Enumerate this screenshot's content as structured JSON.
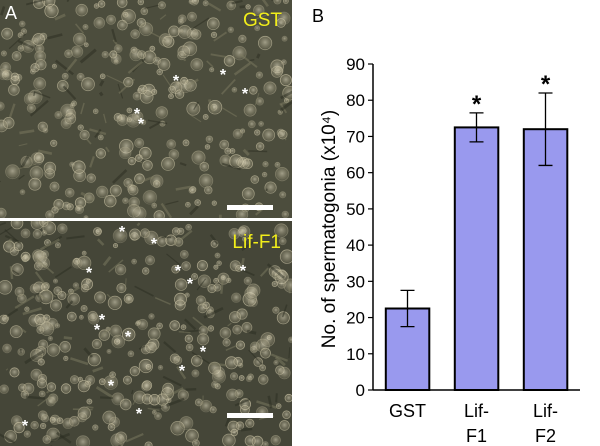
{
  "panel_a": {
    "letter": "A",
    "top_image_label": "GST",
    "bottom_image_label": "Lif-F1",
    "marker_symbol": "*",
    "label_color": "#f2ee1a"
  },
  "panel_b": {
    "letter": "B"
  },
  "chart_data": {
    "type": "bar",
    "categories": [
      [
        "GST"
      ],
      [
        "Lif-",
        "F1"
      ],
      [
        "Lif-",
        "F2"
      ]
    ],
    "values": [
      22.5,
      72.5,
      72
    ],
    "error": [
      5,
      4,
      10
    ],
    "significance": [
      "",
      "*",
      "*"
    ],
    "title": "",
    "xlabel": "",
    "ylabel": "No. of spermatogonia (x10⁴)",
    "ylim": [
      0,
      90
    ],
    "yticks": [
      0,
      10,
      20,
      30,
      40,
      50,
      60,
      70,
      80,
      90
    ],
    "grid": false,
    "legend": "none",
    "bar_color": "#9999ee"
  }
}
